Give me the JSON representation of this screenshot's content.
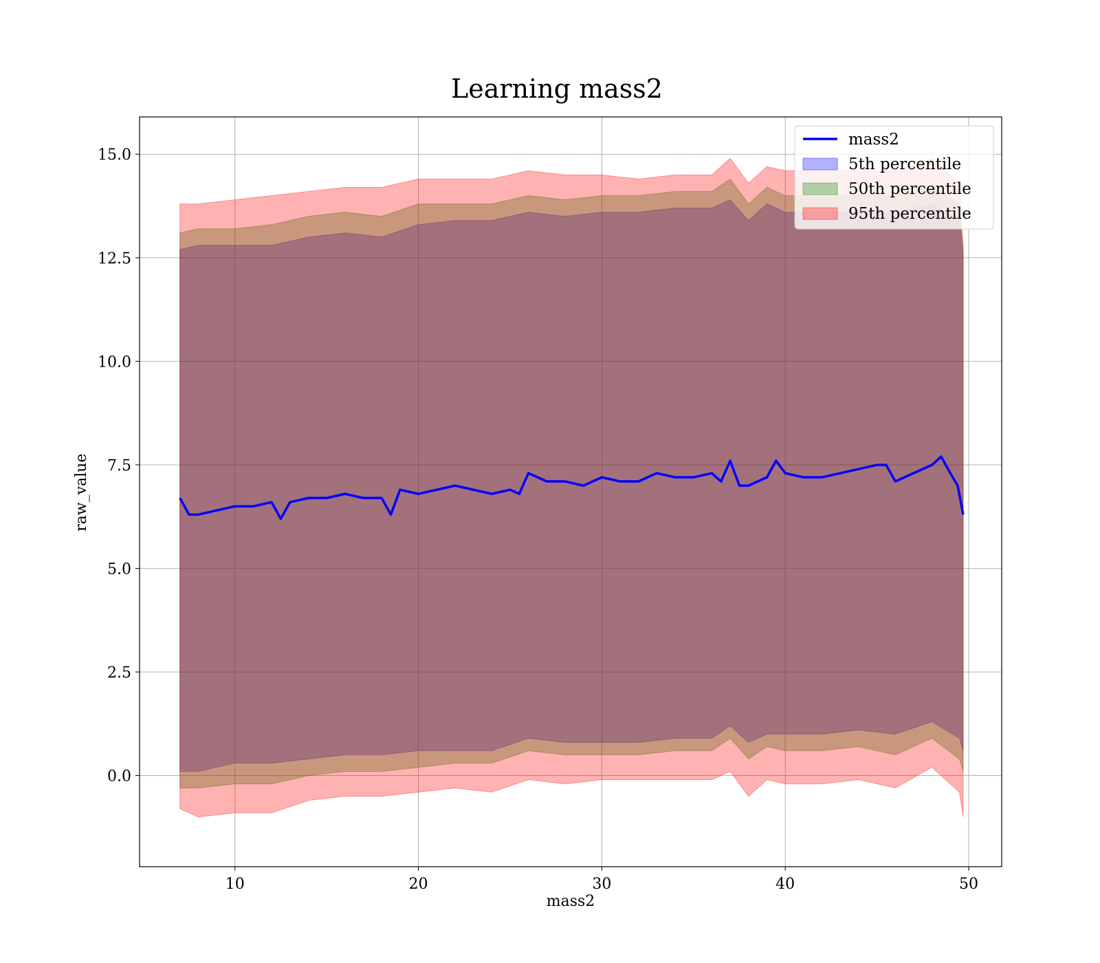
{
  "chart_data": {
    "type": "line",
    "title": "Learning mass2",
    "xlabel": "mass2",
    "ylabel": "raw_value",
    "xlim": [
      4.8,
      51.8
    ],
    "ylim": [
      -2.2,
      15.9
    ],
    "x_ticks": [
      10,
      20,
      30,
      40,
      50
    ],
    "y_ticks": [
      0.0,
      2.5,
      5.0,
      7.5,
      10.0,
      12.5,
      15.0
    ],
    "x_tick_labels": [
      "10",
      "20",
      "30",
      "40",
      "50"
    ],
    "y_tick_labels": [
      "0.0",
      "2.5",
      "5.0",
      "7.5",
      "10.0",
      "12.5",
      "15.0"
    ],
    "grid": true,
    "legend_position": "top-right",
    "colors": {
      "line": "#0000ff",
      "p5": "#0000ff",
      "p50": "#008000",
      "p95": "#ff0000"
    },
    "series": [
      {
        "name": "mass2",
        "kind": "line",
        "x": [
          7,
          7.5,
          8,
          9,
          10,
          11,
          12,
          12.5,
          13,
          14,
          15,
          16,
          17,
          18,
          18.5,
          19,
          20,
          21,
          22,
          23,
          24,
          25,
          25.5,
          26,
          27,
          28,
          29,
          30,
          31,
          32,
          33,
          34,
          35,
          36,
          36.5,
          37,
          37.5,
          38,
          39,
          39.5,
          40,
          41,
          42,
          43,
          44,
          45,
          45.5,
          46,
          47,
          48,
          48.5,
          49,
          49.4,
          49.7
        ],
        "y": [
          6.7,
          6.3,
          6.3,
          6.4,
          6.5,
          6.5,
          6.6,
          6.2,
          6.6,
          6.7,
          6.7,
          6.8,
          6.7,
          6.7,
          6.3,
          6.9,
          6.8,
          6.9,
          7.0,
          6.9,
          6.8,
          6.9,
          6.8,
          7.3,
          7.1,
          7.1,
          7.0,
          7.2,
          7.1,
          7.1,
          7.3,
          7.2,
          7.2,
          7.3,
          7.1,
          7.6,
          7.0,
          7.0,
          7.2,
          7.6,
          7.3,
          7.2,
          7.2,
          7.3,
          7.4,
          7.5,
          7.5,
          7.1,
          7.3,
          7.5,
          7.7,
          7.3,
          7.0,
          6.3
        ]
      },
      {
        "name": "5th percentile",
        "kind": "band",
        "x": [
          7,
          8,
          10,
          12,
          14,
          16,
          18,
          20,
          22,
          24,
          26,
          28,
          30,
          32,
          34,
          36,
          37,
          38,
          39,
          40,
          42,
          44,
          46,
          48,
          49.5,
          49.7
        ],
        "lower": [
          0.1,
          0.1,
          0.3,
          0.3,
          0.4,
          0.5,
          0.5,
          0.6,
          0.6,
          0.6,
          0.9,
          0.8,
          0.8,
          0.8,
          0.9,
          0.9,
          1.2,
          0.8,
          1.0,
          1.0,
          1.0,
          1.1,
          1.0,
          1.3,
          0.9,
          0.6
        ],
        "upper": [
          12.7,
          12.8,
          12.8,
          12.8,
          13.0,
          13.1,
          13.0,
          13.3,
          13.4,
          13.4,
          13.6,
          13.5,
          13.6,
          13.6,
          13.7,
          13.7,
          13.9,
          13.4,
          13.8,
          13.6,
          13.6,
          13.6,
          13.6,
          13.8,
          13.4,
          12.5
        ]
      },
      {
        "name": "50th percentile",
        "kind": "band",
        "x": [
          7,
          8,
          10,
          12,
          14,
          16,
          18,
          20,
          22,
          24,
          26,
          28,
          30,
          32,
          34,
          36,
          37,
          38,
          39,
          40,
          42,
          44,
          46,
          48,
          49.5,
          49.7
        ],
        "lower": [
          -0.3,
          -0.3,
          -0.2,
          -0.2,
          0.0,
          0.1,
          0.1,
          0.2,
          0.3,
          0.3,
          0.6,
          0.5,
          0.5,
          0.5,
          0.6,
          0.6,
          0.9,
          0.4,
          0.7,
          0.6,
          0.6,
          0.7,
          0.5,
          0.9,
          0.4,
          0.1
        ],
        "upper": [
          13.1,
          13.2,
          13.2,
          13.3,
          13.5,
          13.6,
          13.5,
          13.8,
          13.8,
          13.8,
          14.0,
          13.9,
          14.0,
          14.0,
          14.1,
          14.1,
          14.4,
          13.8,
          14.2,
          14.0,
          14.0,
          14.0,
          14.0,
          14.2,
          13.8,
          12.8
        ]
      },
      {
        "name": "95th percentile",
        "kind": "band",
        "x": [
          7,
          8,
          10,
          12,
          14,
          16,
          18,
          20,
          22,
          24,
          26,
          28,
          30,
          32,
          34,
          36,
          37,
          38,
          39,
          40,
          42,
          44,
          46,
          48,
          49.5,
          49.7
        ],
        "lower": [
          -0.8,
          -1.0,
          -0.9,
          -0.9,
          -0.6,
          -0.5,
          -0.5,
          -0.4,
          -0.3,
          -0.4,
          -0.1,
          -0.2,
          -0.1,
          -0.1,
          -0.1,
          -0.1,
          0.1,
          -0.5,
          -0.1,
          -0.2,
          -0.2,
          -0.1,
          -0.3,
          0.2,
          -0.4,
          -1.0
        ],
        "upper": [
          13.8,
          13.8,
          13.9,
          14.0,
          14.1,
          14.2,
          14.2,
          14.4,
          14.4,
          14.4,
          14.6,
          14.5,
          14.5,
          14.4,
          14.5,
          14.5,
          14.9,
          14.3,
          14.7,
          14.6,
          14.6,
          14.6,
          14.6,
          14.9,
          14.3,
          12.6
        ]
      }
    ]
  }
}
